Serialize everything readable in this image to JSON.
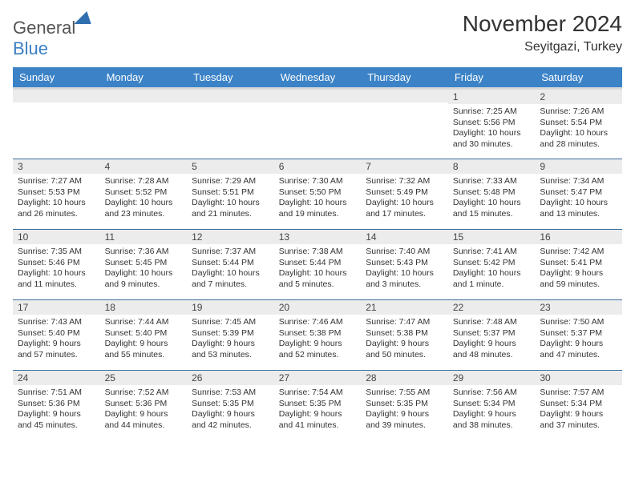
{
  "brand": {
    "name_part1": "General",
    "name_part2": "Blue",
    "logo_fill": "#2f6fb0"
  },
  "header": {
    "month_title": "November 2024",
    "location": "Seyitgazi, Turkey"
  },
  "styling": {
    "header_bg": "#3b82c7",
    "header_text": "#ffffff",
    "header_underline": "#d9d9d9",
    "cell_divider": "#3b6fa0",
    "daynum_bg": "#ececec",
    "body_text": "#333333",
    "page_bg": "#ffffff",
    "font_family": "Arial",
    "title_fontsize_pt": 21,
    "location_fontsize_pt": 12,
    "weekday_fontsize_pt": 10,
    "cell_fontsize_pt": 8
  },
  "calendar": {
    "weekdays": [
      "Sunday",
      "Monday",
      "Tuesday",
      "Wednesday",
      "Thursday",
      "Friday",
      "Saturday"
    ],
    "weeks": [
      [
        {
          "day": "",
          "sunrise": "",
          "sunset": "",
          "daylight": ""
        },
        {
          "day": "",
          "sunrise": "",
          "sunset": "",
          "daylight": ""
        },
        {
          "day": "",
          "sunrise": "",
          "sunset": "",
          "daylight": ""
        },
        {
          "day": "",
          "sunrise": "",
          "sunset": "",
          "daylight": ""
        },
        {
          "day": "",
          "sunrise": "",
          "sunset": "",
          "daylight": ""
        },
        {
          "day": "1",
          "sunrise": "Sunrise: 7:25 AM",
          "sunset": "Sunset: 5:56 PM",
          "daylight": "Daylight: 10 hours and 30 minutes."
        },
        {
          "day": "2",
          "sunrise": "Sunrise: 7:26 AM",
          "sunset": "Sunset: 5:54 PM",
          "daylight": "Daylight: 10 hours and 28 minutes."
        }
      ],
      [
        {
          "day": "3",
          "sunrise": "Sunrise: 7:27 AM",
          "sunset": "Sunset: 5:53 PM",
          "daylight": "Daylight: 10 hours and 26 minutes."
        },
        {
          "day": "4",
          "sunrise": "Sunrise: 7:28 AM",
          "sunset": "Sunset: 5:52 PM",
          "daylight": "Daylight: 10 hours and 23 minutes."
        },
        {
          "day": "5",
          "sunrise": "Sunrise: 7:29 AM",
          "sunset": "Sunset: 5:51 PM",
          "daylight": "Daylight: 10 hours and 21 minutes."
        },
        {
          "day": "6",
          "sunrise": "Sunrise: 7:30 AM",
          "sunset": "Sunset: 5:50 PM",
          "daylight": "Daylight: 10 hours and 19 minutes."
        },
        {
          "day": "7",
          "sunrise": "Sunrise: 7:32 AM",
          "sunset": "Sunset: 5:49 PM",
          "daylight": "Daylight: 10 hours and 17 minutes."
        },
        {
          "day": "8",
          "sunrise": "Sunrise: 7:33 AM",
          "sunset": "Sunset: 5:48 PM",
          "daylight": "Daylight: 10 hours and 15 minutes."
        },
        {
          "day": "9",
          "sunrise": "Sunrise: 7:34 AM",
          "sunset": "Sunset: 5:47 PM",
          "daylight": "Daylight: 10 hours and 13 minutes."
        }
      ],
      [
        {
          "day": "10",
          "sunrise": "Sunrise: 7:35 AM",
          "sunset": "Sunset: 5:46 PM",
          "daylight": "Daylight: 10 hours and 11 minutes."
        },
        {
          "day": "11",
          "sunrise": "Sunrise: 7:36 AM",
          "sunset": "Sunset: 5:45 PM",
          "daylight": "Daylight: 10 hours and 9 minutes."
        },
        {
          "day": "12",
          "sunrise": "Sunrise: 7:37 AM",
          "sunset": "Sunset: 5:44 PM",
          "daylight": "Daylight: 10 hours and 7 minutes."
        },
        {
          "day": "13",
          "sunrise": "Sunrise: 7:38 AM",
          "sunset": "Sunset: 5:44 PM",
          "daylight": "Daylight: 10 hours and 5 minutes."
        },
        {
          "day": "14",
          "sunrise": "Sunrise: 7:40 AM",
          "sunset": "Sunset: 5:43 PM",
          "daylight": "Daylight: 10 hours and 3 minutes."
        },
        {
          "day": "15",
          "sunrise": "Sunrise: 7:41 AM",
          "sunset": "Sunset: 5:42 PM",
          "daylight": "Daylight: 10 hours and 1 minute."
        },
        {
          "day": "16",
          "sunrise": "Sunrise: 7:42 AM",
          "sunset": "Sunset: 5:41 PM",
          "daylight": "Daylight: 9 hours and 59 minutes."
        }
      ],
      [
        {
          "day": "17",
          "sunrise": "Sunrise: 7:43 AM",
          "sunset": "Sunset: 5:40 PM",
          "daylight": "Daylight: 9 hours and 57 minutes."
        },
        {
          "day": "18",
          "sunrise": "Sunrise: 7:44 AM",
          "sunset": "Sunset: 5:40 PM",
          "daylight": "Daylight: 9 hours and 55 minutes."
        },
        {
          "day": "19",
          "sunrise": "Sunrise: 7:45 AM",
          "sunset": "Sunset: 5:39 PM",
          "daylight": "Daylight: 9 hours and 53 minutes."
        },
        {
          "day": "20",
          "sunrise": "Sunrise: 7:46 AM",
          "sunset": "Sunset: 5:38 PM",
          "daylight": "Daylight: 9 hours and 52 minutes."
        },
        {
          "day": "21",
          "sunrise": "Sunrise: 7:47 AM",
          "sunset": "Sunset: 5:38 PM",
          "daylight": "Daylight: 9 hours and 50 minutes."
        },
        {
          "day": "22",
          "sunrise": "Sunrise: 7:48 AM",
          "sunset": "Sunset: 5:37 PM",
          "daylight": "Daylight: 9 hours and 48 minutes."
        },
        {
          "day": "23",
          "sunrise": "Sunrise: 7:50 AM",
          "sunset": "Sunset: 5:37 PM",
          "daylight": "Daylight: 9 hours and 47 minutes."
        }
      ],
      [
        {
          "day": "24",
          "sunrise": "Sunrise: 7:51 AM",
          "sunset": "Sunset: 5:36 PM",
          "daylight": "Daylight: 9 hours and 45 minutes."
        },
        {
          "day": "25",
          "sunrise": "Sunrise: 7:52 AM",
          "sunset": "Sunset: 5:36 PM",
          "daylight": "Daylight: 9 hours and 44 minutes."
        },
        {
          "day": "26",
          "sunrise": "Sunrise: 7:53 AM",
          "sunset": "Sunset: 5:35 PM",
          "daylight": "Daylight: 9 hours and 42 minutes."
        },
        {
          "day": "27",
          "sunrise": "Sunrise: 7:54 AM",
          "sunset": "Sunset: 5:35 PM",
          "daylight": "Daylight: 9 hours and 41 minutes."
        },
        {
          "day": "28",
          "sunrise": "Sunrise: 7:55 AM",
          "sunset": "Sunset: 5:35 PM",
          "daylight": "Daylight: 9 hours and 39 minutes."
        },
        {
          "day": "29",
          "sunrise": "Sunrise: 7:56 AM",
          "sunset": "Sunset: 5:34 PM",
          "daylight": "Daylight: 9 hours and 38 minutes."
        },
        {
          "day": "30",
          "sunrise": "Sunrise: 7:57 AM",
          "sunset": "Sunset: 5:34 PM",
          "daylight": "Daylight: 9 hours and 37 minutes."
        }
      ]
    ]
  }
}
